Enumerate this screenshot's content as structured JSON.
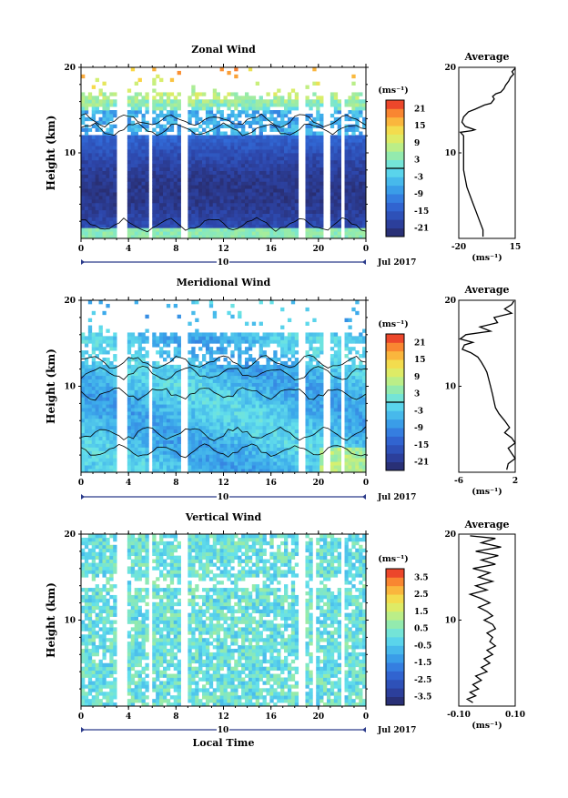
{
  "chart_data": [
    {
      "type": "heatmap",
      "title": "Zonal Wind",
      "ylabel": "Height (km)",
      "ylim": [
        0,
        20
      ],
      "yticks": [
        "20",
        "10"
      ],
      "xticks": [
        "0",
        "4",
        "8",
        "12",
        "16",
        "20",
        "0"
      ],
      "xlim": [
        0,
        24
      ],
      "day_label": "10",
      "date_label": "Jul 2017",
      "data_gaps_hours": [
        [
          3.1,
          3.8
        ],
        [
          5.8,
          6.1
        ],
        [
          8.5,
          9.0
        ],
        [
          18.3,
          18.8
        ],
        [
          20.5,
          20.9
        ],
        [
          21.8,
          22.2
        ]
      ],
      "colorbar": {
        "unit": "(ms⁻¹)",
        "ticks": [
          "21",
          "15",
          "9",
          "3",
          "-3",
          "-9",
          "-15",
          "-21"
        ],
        "range": [
          -24,
          24
        ]
      },
      "average": {
        "title": "Average",
        "unit": "(ms⁻¹)",
        "xticks": [
          "-20",
          "15"
        ],
        "xlim": [
          -20,
          15
        ],
        "yticks": [
          "20",
          "10"
        ],
        "profile": [
          [
            -5,
            0.2
          ],
          [
            -5,
            1
          ],
          [
            -7,
            2
          ],
          [
            -9,
            3
          ],
          [
            -11,
            4
          ],
          [
            -13,
            5
          ],
          [
            -15,
            6
          ],
          [
            -16,
            7
          ],
          [
            -17,
            8
          ],
          [
            -17,
            9
          ],
          [
            -17,
            10
          ],
          [
            -17,
            11
          ],
          [
            -17,
            12
          ],
          [
            -19,
            12.4
          ],
          [
            -12,
            12.6
          ],
          [
            -10,
            12.7
          ],
          [
            -16,
            13.1
          ],
          [
            -18,
            13.6
          ],
          [
            -17,
            14.2
          ],
          [
            -14,
            14.8
          ],
          [
            -10,
            15.1
          ],
          [
            -4,
            15.6
          ],
          [
            0,
            15.8
          ],
          [
            2,
            16.3
          ],
          [
            1,
            16.6
          ],
          [
            3,
            16.9
          ],
          [
            6,
            17.1
          ],
          [
            8,
            17.5
          ],
          [
            9,
            17.9
          ],
          [
            11,
            18.4
          ],
          [
            12,
            18.8
          ],
          [
            14,
            19.2
          ],
          [
            13,
            19.5
          ],
          [
            15,
            19.9
          ]
        ]
      },
      "seed": 11
    },
    {
      "type": "heatmap",
      "title": "Meridional Wind",
      "ylabel": "Height (km)",
      "ylim": [
        0,
        20
      ],
      "yticks": [
        "20",
        "10"
      ],
      "xticks": [
        "0",
        "4",
        "8",
        "12",
        "16",
        "20",
        "0"
      ],
      "xlim": [
        0,
        24
      ],
      "day_label": "10",
      "date_label": "Jul 2017",
      "data_gaps_hours": [
        [
          3.1,
          3.8
        ],
        [
          5.8,
          6.1
        ],
        [
          8.5,
          9.0
        ],
        [
          18.3,
          18.8
        ],
        [
          20.5,
          20.9
        ],
        [
          21.8,
          22.2
        ]
      ],
      "colorbar": {
        "unit": "(ms⁻¹)",
        "ticks": [
          "21",
          "15",
          "9",
          "3",
          "-3",
          "-9",
          "-15",
          "-21"
        ],
        "range": [
          -24,
          24
        ]
      },
      "average": {
        "title": "Average",
        "unit": "(ms⁻¹)",
        "xticks": [
          "-6",
          "2"
        ],
        "xlim": [
          -6,
          2
        ],
        "yticks": [
          "20",
          "10"
        ],
        "profile": [
          [
            0.8,
            0.3
          ],
          [
            1,
            1
          ],
          [
            2,
            1.6
          ],
          [
            1.5,
            2.2
          ],
          [
            1,
            2.8
          ],
          [
            2,
            3.4
          ],
          [
            1.5,
            4
          ],
          [
            0.5,
            4.6
          ],
          [
            1.2,
            5.2
          ],
          [
            0.5,
            6
          ],
          [
            -0.3,
            6.8
          ],
          [
            -0.8,
            7.5
          ],
          [
            -1,
            8.2
          ],
          [
            -1.2,
            9
          ],
          [
            -1.5,
            10
          ],
          [
            -1.8,
            11
          ],
          [
            -2,
            11.6
          ],
          [
            -2.3,
            12.1
          ],
          [
            -2.8,
            12.8
          ],
          [
            -3.3,
            13.4
          ],
          [
            -4.3,
            13.9
          ],
          [
            -5.5,
            14.3
          ],
          [
            -5.2,
            14.8
          ],
          [
            -4,
            15.1
          ],
          [
            -5.8,
            15.5
          ],
          [
            -5,
            16
          ],
          [
            -1.5,
            16.4
          ],
          [
            -3,
            16.9
          ],
          [
            -0.5,
            17.4
          ],
          [
            -1,
            18
          ],
          [
            1.5,
            18.5
          ],
          [
            0.5,
            19
          ],
          [
            1.5,
            19.5
          ],
          [
            1.8,
            19.9
          ]
        ]
      },
      "seed": 23
    },
    {
      "type": "heatmap",
      "title": "Vertical Wind",
      "ylabel": "Height (km)",
      "xlabel": "Local Time",
      "ylim": [
        0,
        20
      ],
      "yticks": [
        "20",
        "10"
      ],
      "xticks": [
        "0",
        "4",
        "8",
        "12",
        "16",
        "20",
        "0"
      ],
      "xlim": [
        0,
        24
      ],
      "day_label": "10",
      "date_label": "Jul 2017",
      "data_gaps_hours": [
        [
          3.1,
          3.8
        ],
        [
          5.8,
          6.1
        ],
        [
          8.5,
          9.0
        ],
        [
          18.3,
          18.8
        ],
        [
          19.4,
          19.7
        ],
        [
          21.8,
          22.2
        ]
      ],
      "colorbar": {
        "unit": "(ms⁻¹)",
        "ticks": [
          "3.5",
          "2.5",
          "1.5",
          "0.5",
          "-0.5",
          "-1.5",
          "-2.5",
          "-3.5"
        ],
        "range": [
          -4,
          4
        ]
      },
      "average": {
        "title": "Average",
        "unit": "(ms⁻¹)",
        "xticks": [
          "-0.10",
          "0.10"
        ],
        "xlim": [
          -0.1,
          0.1
        ],
        "yticks": [
          "20",
          "10"
        ],
        "profile": [
          [
            -0.05,
            0.4
          ],
          [
            -0.07,
            0.8
          ],
          [
            -0.04,
            1.2
          ],
          [
            -0.06,
            1.6
          ],
          [
            -0.03,
            2
          ],
          [
            -0.05,
            2.5
          ],
          [
            -0.02,
            3
          ],
          [
            -0.04,
            3.5
          ],
          [
            0.0,
            4
          ],
          [
            -0.02,
            4.5
          ],
          [
            0.01,
            5
          ],
          [
            -0.01,
            5.5
          ],
          [
            0.02,
            6
          ],
          [
            0.0,
            6.5
          ],
          [
            0.03,
            7
          ],
          [
            0.01,
            7.5
          ],
          [
            0.02,
            8
          ],
          [
            0.0,
            8.5
          ],
          [
            0.03,
            9
          ],
          [
            0.02,
            9.5
          ],
          [
            -0.01,
            10
          ],
          [
            0.02,
            10.5
          ],
          [
            0.0,
            11
          ],
          [
            -0.03,
            11.5
          ],
          [
            0.01,
            12
          ],
          [
            -0.02,
            12.5
          ],
          [
            -0.06,
            13
          ],
          [
            0.0,
            13.5
          ],
          [
            -0.04,
            14
          ],
          [
            0.02,
            14.5
          ],
          [
            -0.03,
            15
          ],
          [
            0.01,
            15.5
          ],
          [
            -0.05,
            16
          ],
          [
            0.03,
            16.5
          ],
          [
            -0.02,
            17
          ],
          [
            0.04,
            17.5
          ],
          [
            -0.04,
            18
          ],
          [
            0.05,
            18.5
          ],
          [
            -0.02,
            19
          ],
          [
            0.03,
            19.5
          ],
          [
            -0.06,
            19.8
          ]
        ]
      },
      "seed": 37
    }
  ]
}
